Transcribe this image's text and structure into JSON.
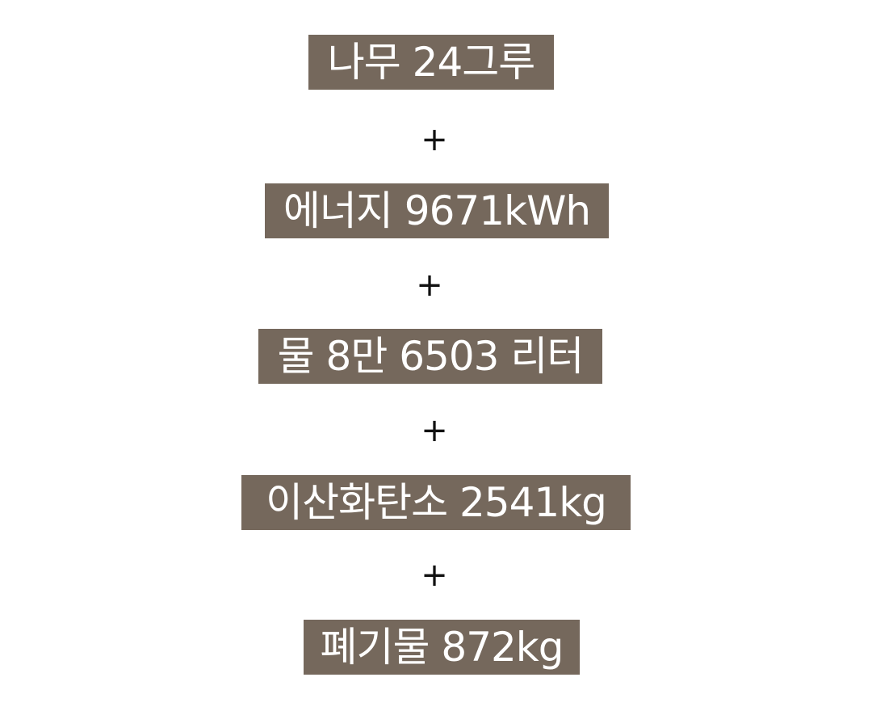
{
  "items": [
    {
      "label": "나무 24그루"
    },
    {
      "label": "에너지 9671kWh"
    },
    {
      "label": "물 8만 6503 리터"
    },
    {
      "label": "이산화탄소 2541kg"
    },
    {
      "label": "폐기물 872kg"
    }
  ],
  "operator": "+",
  "colors": {
    "label_background": "#75685c",
    "label_text": "#ffffff",
    "operator": "#111111",
    "page_background": "#ffffff"
  }
}
